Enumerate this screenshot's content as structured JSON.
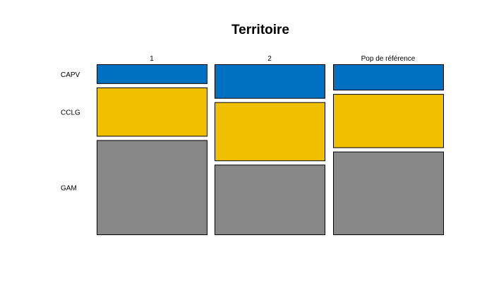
{
  "chart_data": {
    "type": "mosaic",
    "title": "Territoire",
    "columns": [
      "1",
      "2",
      "Pop de référence"
    ],
    "rows": [
      "CAPV",
      "CCLG",
      "GAM"
    ],
    "colors": {
      "CAPV": "#0070c0",
      "CCLG": "#f0c000",
      "GAM": "#878787"
    },
    "proportions": [
      {
        "column": "1",
        "values": [
          0.12,
          0.3,
          0.58
        ]
      },
      {
        "column": "2",
        "values": [
          0.21,
          0.36,
          0.43
        ]
      },
      {
        "column": "Pop de référence",
        "values": [
          0.16,
          0.33,
          0.51
        ]
      }
    ]
  }
}
